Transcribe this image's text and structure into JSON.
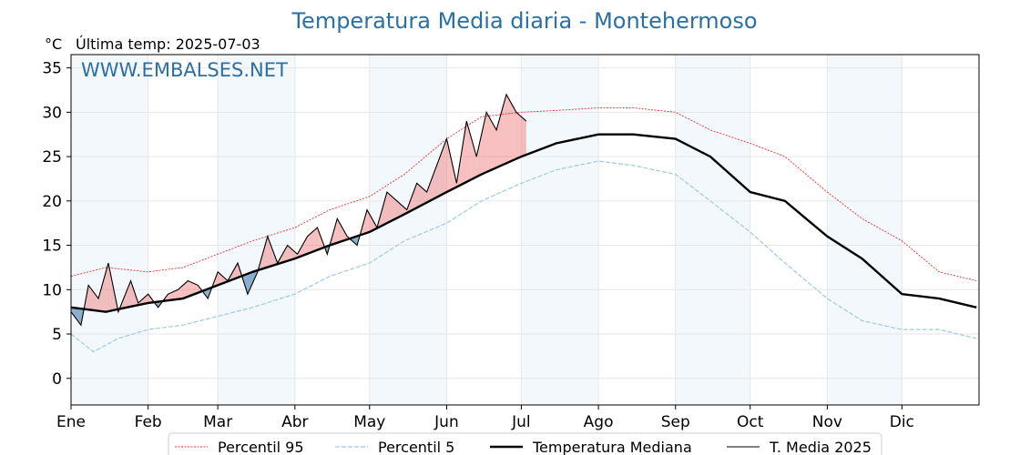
{
  "chart_data": {
    "type": "line",
    "title": "Temperatura Media diaria - Montehermoso",
    "unit": "°C",
    "last_temp_label": "Última temp: 2025-07-03",
    "watermark": "WWW.EMBALSES.NET",
    "xlabel": "",
    "ylabel": "",
    "ylim": [
      -3,
      36.5
    ],
    "yticks": [
      0,
      5,
      10,
      15,
      20,
      25,
      30,
      35
    ],
    "months": [
      "Ene",
      "Feb",
      "Mar",
      "Abr",
      "May",
      "Jun",
      "Jul",
      "Ago",
      "Sep",
      "Oct",
      "Nov",
      "Dic"
    ],
    "grid": true,
    "legend_position": "bottom",
    "colors": {
      "title": "#2c6fa3",
      "p95": "#e83030",
      "p5": "#9ccbe0",
      "median": "#000000",
      "current": "#000000",
      "above": "#f08080",
      "below": "#5b8db8",
      "shade": "#dceaf7"
    },
    "series": [
      {
        "name": "Percentil 95",
        "key": "p95",
        "x": [
          1,
          15,
          32,
          46,
          60,
          74,
          91,
          105,
          121,
          135,
          152,
          166,
          182,
          196,
          213,
          227,
          244,
          258,
          274,
          288,
          305,
          319,
          335,
          350,
          365
        ],
        "values": [
          11.5,
          12.5,
          12,
          12.5,
          14,
          15.5,
          17,
          19,
          20.5,
          23,
          27,
          29.5,
          30,
          30.2,
          30.5,
          30.5,
          30,
          28,
          26.5,
          25,
          21,
          18,
          15.5,
          12,
          11
        ]
      },
      {
        "name": "Percentil 5",
        "key": "p5",
        "x": [
          1,
          10,
          20,
          32,
          46,
          60,
          74,
          91,
          105,
          121,
          135,
          152,
          166,
          182,
          196,
          213,
          227,
          244,
          258,
          274,
          288,
          305,
          319,
          335,
          350,
          365
        ],
        "values": [
          5,
          3,
          4.5,
          5.5,
          6,
          7,
          8,
          9.5,
          11.5,
          13,
          15.5,
          17.5,
          20,
          22,
          23.5,
          24.5,
          24,
          23,
          20,
          16.5,
          13,
          9,
          6.5,
          5.5,
          5.5,
          4.5
        ]
      },
      {
        "name": "Temperatura Mediana",
        "key": "median",
        "x": [
          1,
          15,
          32,
          46,
          60,
          74,
          91,
          105,
          121,
          135,
          152,
          166,
          182,
          196,
          213,
          227,
          244,
          258,
          274,
          288,
          305,
          319,
          335,
          350,
          365
        ],
        "values": [
          8,
          7.5,
          8.5,
          9,
          10.5,
          12,
          13.5,
          15,
          16.5,
          18.5,
          21,
          23,
          25,
          26.5,
          27.5,
          27.5,
          27,
          25,
          21,
          20,
          16,
          13.5,
          9.5,
          9,
          8
        ]
      },
      {
        "name": "T. Media 2025",
        "key": "current",
        "x": [
          1,
          5,
          8,
          12,
          16,
          20,
          25,
          28,
          32,
          36,
          40,
          44,
          48,
          52,
          56,
          60,
          64,
          68,
          72,
          76,
          80,
          84,
          88,
          92,
          96,
          100,
          104,
          108,
          112,
          116,
          120,
          124,
          128,
          132,
          136,
          140,
          144,
          148,
          152,
          156,
          160,
          164,
          168,
          172,
          176,
          180,
          184
        ],
        "values": [
          7.5,
          6,
          10.5,
          9,
          13,
          7.5,
          11,
          8.5,
          9.5,
          8,
          9.5,
          10,
          11,
          10.5,
          9,
          12,
          11,
          13,
          9.5,
          12,
          16,
          13,
          15,
          14,
          16,
          17,
          14,
          18,
          16,
          15,
          19,
          17,
          21,
          20,
          19,
          22,
          21,
          24,
          27,
          22,
          29,
          25,
          30,
          28,
          32,
          30,
          29
        ]
      }
    ]
  }
}
